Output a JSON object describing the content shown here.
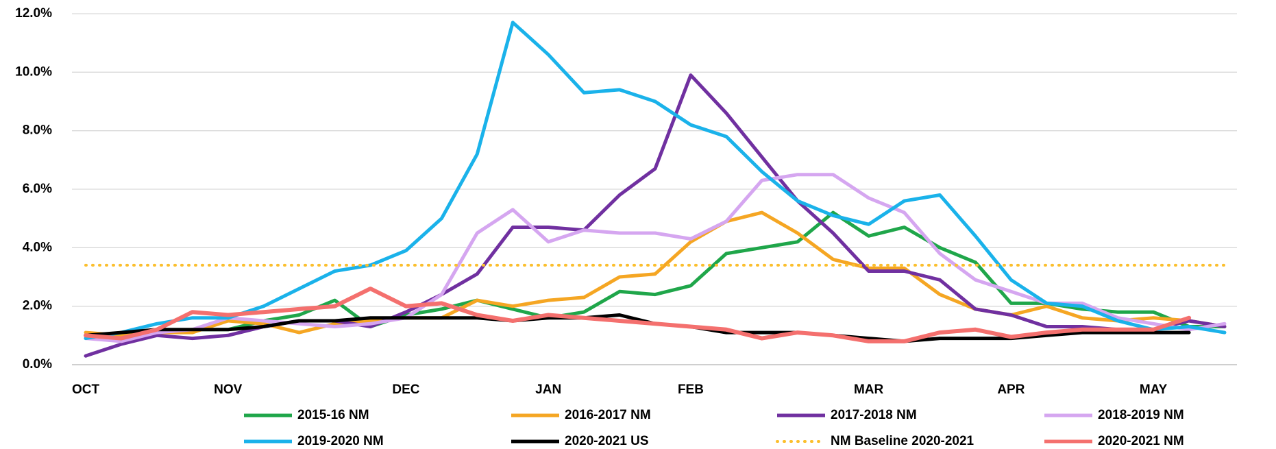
{
  "chart_data": {
    "type": "line",
    "categories": [
      "OCT",
      null,
      null,
      null,
      "NOV",
      null,
      null,
      null,
      null,
      "DEC",
      null,
      null,
      null,
      "JAN",
      null,
      null,
      null,
      "FEB",
      null,
      null,
      null,
      null,
      "MAR",
      null,
      null,
      null,
      "APR",
      null,
      null,
      null,
      "MAY",
      null,
      null
    ],
    "ylim": [
      0,
      12
    ],
    "yticks": [
      {
        "value": 0,
        "label": "0.0%"
      },
      {
        "value": 2,
        "label": "2.0%"
      },
      {
        "value": 4,
        "label": "4.0%"
      },
      {
        "value": 6,
        "label": "6.0%"
      },
      {
        "value": 8,
        "label": "8.0%"
      },
      {
        "value": 10,
        "label": "10.0%"
      },
      {
        "value": 12,
        "label": "12.0%"
      }
    ],
    "grid": true,
    "legend": "bottom",
    "series": [
      {
        "name": "2015-16 NM",
        "color": "#1fa64a",
        "values": [
          1.0,
          0.9,
          1.1,
          1.2,
          1.2,
          1.5,
          1.7,
          2.2,
          1.3,
          1.7,
          1.9,
          2.2,
          1.9,
          1.6,
          1.8,
          2.5,
          2.4,
          2.7,
          3.8,
          4.0,
          4.2,
          5.2,
          4.4,
          4.7,
          4.0,
          3.5,
          2.1,
          2.1,
          1.9,
          1.8,
          1.8,
          1.3,
          1.3
        ]
      },
      {
        "name": "2016-2017 NM",
        "color": "#f5a623",
        "values": [
          1.1,
          1.0,
          1.1,
          1.1,
          1.5,
          1.4,
          1.1,
          1.4,
          1.5,
          1.6,
          1.6,
          2.2,
          2.0,
          2.2,
          2.3,
          3.0,
          3.1,
          4.2,
          4.9,
          5.2,
          4.5,
          3.6,
          3.3,
          3.3,
          2.4,
          1.9,
          1.7,
          2.0,
          1.6,
          1.5,
          1.6,
          1.5,
          1.3
        ]
      },
      {
        "name": "2017-2018 NM",
        "color": "#7030a0",
        "values": [
          0.3,
          0.7,
          1.0,
          0.9,
          1.0,
          1.3,
          1.5,
          1.5,
          1.3,
          1.8,
          2.4,
          3.1,
          4.7,
          4.7,
          4.6,
          5.8,
          6.7,
          9.9,
          8.6,
          7.1,
          5.6,
          4.5,
          3.2,
          3.2,
          2.9,
          1.9,
          1.7,
          1.3,
          1.3,
          1.2,
          1.2,
          1.5,
          1.3
        ]
      },
      {
        "name": "2018-2019 NM",
        "color": "#d5a6f0",
        "values": [
          0.9,
          0.8,
          1.1,
          1.2,
          1.6,
          1.5,
          1.4,
          1.3,
          1.4,
          1.6,
          2.4,
          4.5,
          5.3,
          4.2,
          4.6,
          4.5,
          4.5,
          4.3,
          4.9,
          6.3,
          6.5,
          6.5,
          5.7,
          5.2,
          3.8,
          2.9,
          2.5,
          2.1,
          2.1,
          1.6,
          1.4,
          1.2,
          1.4
        ]
      },
      {
        "name": "2019-2020 NM",
        "color": "#1ab2ea",
        "values": [
          0.9,
          1.1,
          1.4,
          1.6,
          1.6,
          2.0,
          2.6,
          3.2,
          3.4,
          3.9,
          5.0,
          7.2,
          11.7,
          10.6,
          9.3,
          9.4,
          9.0,
          8.2,
          7.8,
          6.6,
          5.6,
          5.1,
          4.8,
          5.6,
          5.8,
          4.4,
          2.9,
          2.1,
          2.0,
          1.5,
          1.2,
          1.3,
          1.1
        ]
      },
      {
        "name": "2020-2021 US",
        "color": "#000000",
        "values": [
          1.0,
          1.1,
          1.2,
          1.2,
          1.2,
          1.3,
          1.5,
          1.5,
          1.6,
          1.6,
          1.6,
          1.6,
          1.5,
          1.6,
          1.6,
          1.7,
          1.4,
          1.3,
          1.1,
          1.1,
          1.1,
          1.0,
          0.9,
          0.8,
          0.9,
          0.9,
          0.9,
          1.0,
          1.1,
          1.1,
          1.1,
          1.1,
          null
        ]
      },
      {
        "name": "NM Baseline 2020-2021",
        "color": "#fbbf2e",
        "style": "dotted",
        "values": [
          3.4,
          3.4,
          3.4,
          3.4,
          3.4,
          3.4,
          3.4,
          3.4,
          3.4,
          3.4,
          3.4,
          3.4,
          3.4,
          3.4,
          3.4,
          3.4,
          3.4,
          3.4,
          3.4,
          3.4,
          3.4,
          3.4,
          3.4,
          3.4,
          3.4,
          3.4,
          3.4,
          3.4,
          3.4,
          3.4,
          3.4,
          3.4,
          3.4
        ]
      },
      {
        "name": "2020-2021 NM",
        "color": "#f4706e",
        "values": [
          1.0,
          0.9,
          1.2,
          1.8,
          1.7,
          1.8,
          1.9,
          2.0,
          2.6,
          2.0,
          2.1,
          1.7,
          1.5,
          1.7,
          1.6,
          1.5,
          1.4,
          1.3,
          1.2,
          0.9,
          1.1,
          1.0,
          0.8,
          0.8,
          1.1,
          1.2,
          0.95,
          1.1,
          1.2,
          1.2,
          1.2,
          1.6,
          null
        ]
      }
    ]
  }
}
